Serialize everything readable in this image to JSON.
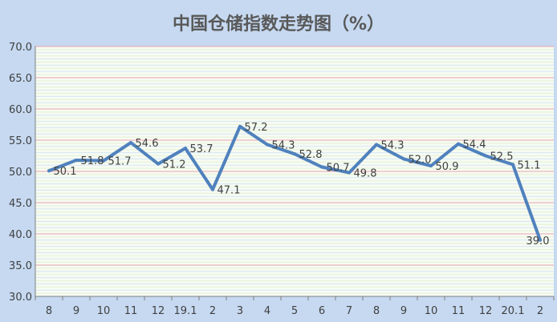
{
  "chart_data": {
    "type": "line",
    "title": "中国仓储指数走势图（%）",
    "xlabel": "",
    "ylabel": "",
    "categories": [
      "8",
      "9",
      "10",
      "11",
      "12",
      "19.1",
      "2",
      "3",
      "4",
      "5",
      "6",
      "7",
      "8",
      "9",
      "10",
      "11",
      "12",
      "20.1",
      "2"
    ],
    "series": [
      {
        "values": [
          50.1,
          51.8,
          51.7,
          54.6,
          51.2,
          53.7,
          47.1,
          57.2,
          54.3,
          52.8,
          50.7,
          49.8,
          54.3,
          52.0,
          50.9,
          54.4,
          52.5,
          51.1,
          39.0
        ],
        "data_labels": [
          "50.1",
          "51.8",
          "51.7",
          "54.6",
          "51.2",
          "53.7",
          "47.1",
          "57.2",
          "54.3",
          "52.8",
          "50.7",
          "49.8",
          "54.3",
          "52.0",
          "50.9",
          "54.4",
          "52.5",
          "51.1",
          "39.0"
        ]
      }
    ],
    "ylim": [
      30.0,
      70.0
    ],
    "yticks": [
      "30.0",
      "35.0",
      "40.0",
      "45.0",
      "50.0",
      "55.0",
      "60.0",
      "65.0",
      "70.0"
    ],
    "grid": true,
    "colors": {
      "line": "#4f81bd",
      "major_grid": "#e6a3b1",
      "minor_grid_a": "#e4f1d6",
      "minor_grid_b": "#d3e6f5",
      "plot_background": "#f7fbf2",
      "axis": "#7f7f7f",
      "text": "#404040"
    }
  }
}
